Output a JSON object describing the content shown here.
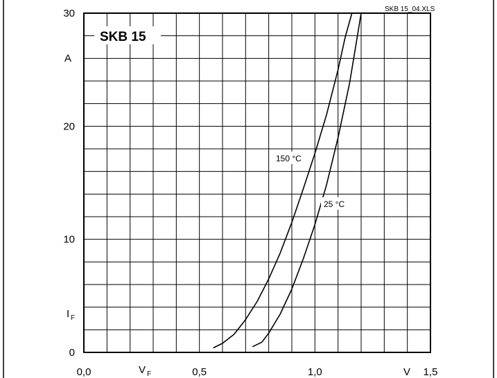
{
  "chart_data": {
    "type": "line",
    "title": "SKB 15",
    "file_label": "SKB 15_04.XLS",
    "xlim": [
      0.0,
      1.5
    ],
    "ylim": [
      0,
      30
    ],
    "grid": true,
    "x_ticks": [
      {
        "value": 0.0,
        "label": "0,0"
      },
      {
        "value": 0.5,
        "label": "0,5"
      },
      {
        "value": 1.0,
        "label": "1,0"
      },
      {
        "value": 1.5,
        "label": "1,5"
      }
    ],
    "y_ticks": [
      {
        "value": 0,
        "label": "0"
      },
      {
        "value": 10,
        "label": "10"
      },
      {
        "value": 20,
        "label": "20"
      },
      {
        "value": 30,
        "label": "30"
      }
    ],
    "x_axis_symbol": "V",
    "x_axis_symbol_sub": "F",
    "x_axis_unit": "V",
    "y_axis_symbol": "I",
    "y_axis_symbol_sub": "F",
    "y_axis_unit": "A",
    "series": [
      {
        "name": "150 °C",
        "color": "#000000",
        "x": [
          0.56,
          0.6,
          0.65,
          0.7,
          0.75,
          0.8,
          0.85,
          0.9,
          0.95,
          1.0,
          1.05,
          1.1,
          1.13,
          1.16
        ],
        "y": [
          0.4,
          0.8,
          1.6,
          2.9,
          4.5,
          6.5,
          8.8,
          11.5,
          14.5,
          17.6,
          21.0,
          25.0,
          27.8,
          30.0
        ]
      },
      {
        "name": "25 °C",
        "color": "#000000",
        "x": [
          0.73,
          0.77,
          0.8,
          0.85,
          0.9,
          0.95,
          1.0,
          1.05,
          1.1,
          1.15,
          1.18,
          1.2
        ],
        "y": [
          0.5,
          0.9,
          1.7,
          3.4,
          5.6,
          8.3,
          11.3,
          14.8,
          19.0,
          23.8,
          27.5,
          30.0
        ]
      }
    ],
    "annotations": [
      {
        "text": "150 °C",
        "series": 0
      },
      {
        "text": "25 °C",
        "series": 1
      }
    ]
  }
}
